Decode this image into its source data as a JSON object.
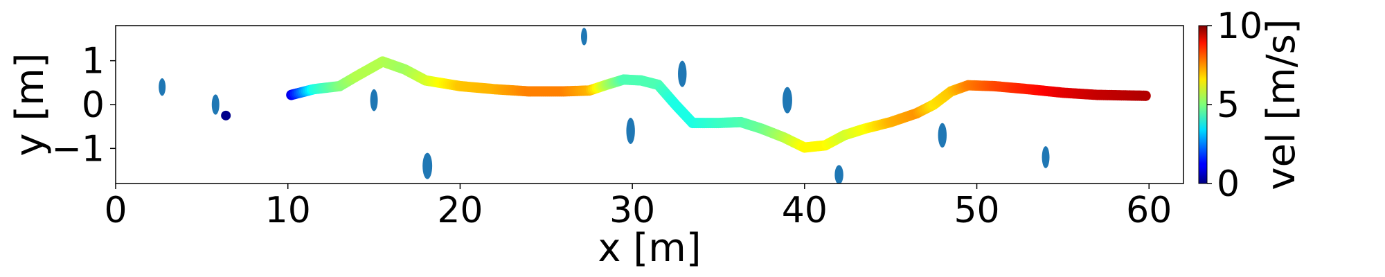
{
  "chart_data": {
    "type": "scatter",
    "title": "",
    "xlabel": "x [m]",
    "ylabel": "y [m]",
    "xlim": [
      0,
      62
    ],
    "ylim": [
      -1.8,
      1.8
    ],
    "xticks": [
      0,
      10,
      20,
      30,
      40,
      50,
      60
    ],
    "yticks": [
      -1,
      0,
      1
    ],
    "xtick_labels": [
      "0",
      "10",
      "20",
      "30",
      "40",
      "50",
      "60"
    ],
    "ytick_labels": [
      "−1",
      "0",
      "1"
    ],
    "grid": false,
    "colorbar": {
      "label": "vel [m/s]",
      "range": [
        0,
        10
      ],
      "ticks": [
        0,
        5,
        10
      ],
      "tick_labels": [
        "0",
        "5",
        "10"
      ],
      "colormap": "jet"
    },
    "obstacles": {
      "color": "#1f77b4",
      "points": [
        {
          "x": 2.7,
          "y": 0.4,
          "rx": 0.2,
          "ry": 0.2
        },
        {
          "x": 5.8,
          "y": 0.0,
          "rx": 0.22,
          "ry": 0.23
        },
        {
          "x": 15.0,
          "y": 0.1,
          "rx": 0.22,
          "ry": 0.25
        },
        {
          "x": 18.1,
          "y": -1.4,
          "rx": 0.28,
          "ry": 0.3
        },
        {
          "x": 27.2,
          "y": 1.55,
          "rx": 0.18,
          "ry": 0.2
        },
        {
          "x": 29.9,
          "y": -0.6,
          "rx": 0.25,
          "ry": 0.3
        },
        {
          "x": 32.9,
          "y": 0.7,
          "rx": 0.25,
          "ry": 0.3
        },
        {
          "x": 39.0,
          "y": 0.1,
          "rx": 0.28,
          "ry": 0.3
        },
        {
          "x": 42.0,
          "y": -1.6,
          "rx": 0.25,
          "ry": 0.22
        },
        {
          "x": 48.0,
          "y": -0.7,
          "rx": 0.25,
          "ry": 0.28
        },
        {
          "x": 54.0,
          "y": -1.2,
          "rx": 0.22,
          "ry": 0.25
        }
      ]
    },
    "start_marker": {
      "x": 6.4,
      "y": -0.25,
      "color": "#00008b"
    },
    "trajectory": {
      "x": [
        10.2,
        11.5,
        13.0,
        14.0,
        15.5,
        16.8,
        18.0,
        20.0,
        22.0,
        24.0,
        26.0,
        27.5,
        28.5,
        29.5,
        30.5,
        31.5,
        32.5,
        33.5,
        35.0,
        36.3,
        37.5,
        38.8,
        40.0,
        41.2,
        42.3,
        43.5,
        45.0,
        46.5,
        47.5,
        48.5,
        49.5,
        51.0,
        53.0,
        55.0,
        57.0,
        59.8
      ],
      "y": [
        0.22,
        0.35,
        0.42,
        0.65,
        0.98,
        0.8,
        0.55,
        0.42,
        0.35,
        0.3,
        0.3,
        0.32,
        0.45,
        0.57,
        0.55,
        0.45,
        0.0,
        -0.42,
        -0.42,
        -0.4,
        -0.55,
        -0.75,
        -0.98,
        -0.93,
        -0.7,
        -0.55,
        -0.4,
        -0.2,
        0.0,
        0.3,
        0.44,
        0.42,
        0.35,
        0.27,
        0.22,
        0.2
      ],
      "vel": [
        1.0,
        4.0,
        5.0,
        5.5,
        5.5,
        5.3,
        5.8,
        6.8,
        7.0,
        7.5,
        7.5,
        7.0,
        5.5,
        4.5,
        4.5,
        4.5,
        4.0,
        4.0,
        4.3,
        4.5,
        4.8,
        5.5,
        6.3,
        6.3,
        5.8,
        6.2,
        7.0,
        7.3,
        6.5,
        6.8,
        7.5,
        8.0,
        8.5,
        9.0,
        9.3,
        9.5
      ]
    }
  }
}
